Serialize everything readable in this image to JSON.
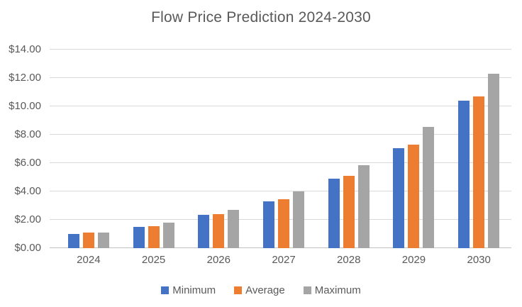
{
  "chart_data": {
    "type": "bar",
    "title": "Flow Price Prediction 2024-2030",
    "categories": [
      "2024",
      "2025",
      "2026",
      "2027",
      "2028",
      "2029",
      "2030"
    ],
    "series": [
      {
        "name": "Minimum",
        "color": "#4472C4",
        "values": [
          1.0,
          1.5,
          2.35,
          3.3,
          4.9,
          7.05,
          10.4
        ]
      },
      {
        "name": "Average",
        "color": "#ED7D31",
        "values": [
          1.1,
          1.55,
          2.4,
          3.45,
          5.1,
          7.3,
          10.7
        ]
      },
      {
        "name": "Maximum",
        "color": "#A5A5A5",
        "values": [
          1.1,
          1.8,
          2.7,
          4.0,
          5.85,
          8.55,
          12.3
        ]
      }
    ],
    "ylim": [
      0,
      14
    ],
    "yticks": [
      {
        "value": 0,
        "label": "$0.00"
      },
      {
        "value": 2,
        "label": "$2.00"
      },
      {
        "value": 4,
        "label": "$4.00"
      },
      {
        "value": 6,
        "label": "$6.00"
      },
      {
        "value": 8,
        "label": "$8.00"
      },
      {
        "value": 10,
        "label": "$10.00"
      },
      {
        "value": 12,
        "label": "$12.00"
      },
      {
        "value": 14,
        "label": "$14.00"
      }
    ],
    "grid": true,
    "legend_position": "bottom",
    "xlabel": "",
    "ylabel": ""
  },
  "colors": {
    "background": "#FFFFFF",
    "title_text": "#595959",
    "axis_text": "#595959",
    "gridline": "#D9D9D9",
    "axis_line": "#C3C3C3"
  }
}
